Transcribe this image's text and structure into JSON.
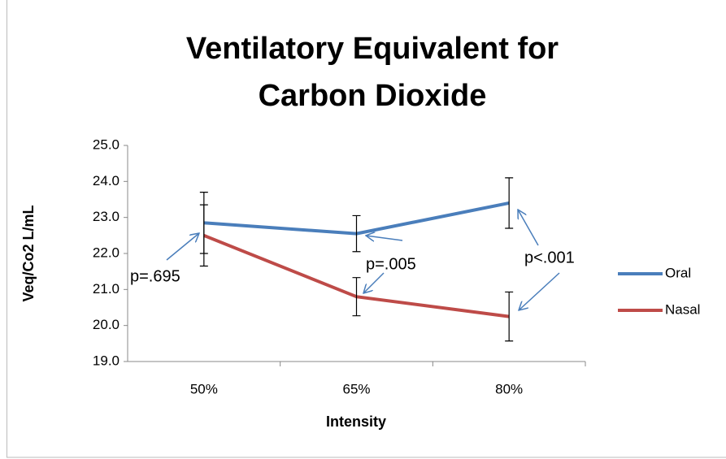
{
  "chart_data": {
    "type": "line",
    "title": [
      "Ventilatory Equivalent for",
      "Carbon Dioxide"
    ],
    "x_label": "Intensity",
    "y_label": "Veq/Co2 L/mL",
    "categories": [
      "50%",
      "65%",
      "80%"
    ],
    "series": [
      {
        "name": "Oral",
        "color": "#4a7ebb",
        "values": [
          22.85,
          22.55,
          23.4
        ],
        "errors": [
          0.85,
          0.5,
          0.7
        ]
      },
      {
        "name": "Nasal",
        "color": "#be4b48",
        "values": [
          22.5,
          20.8,
          20.25
        ],
        "errors": [
          0.85,
          0.53,
          0.68
        ]
      }
    ],
    "ylim": [
      19,
      25
    ],
    "yticks": [
      {
        "value": 19,
        "label": "19.0"
      },
      {
        "value": 20,
        "label": "20.0"
      },
      {
        "value": 21,
        "label": "21.0"
      },
      {
        "value": 22,
        "label": "22.0"
      },
      {
        "value": 23,
        "label": "23.0"
      },
      {
        "value": 24,
        "label": "24.0"
      },
      {
        "value": 25,
        "label": "25.0"
      }
    ],
    "annotations": [
      "p=.695",
      "p=.005",
      "p<.001"
    ],
    "legend": "right",
    "grid": false
  }
}
